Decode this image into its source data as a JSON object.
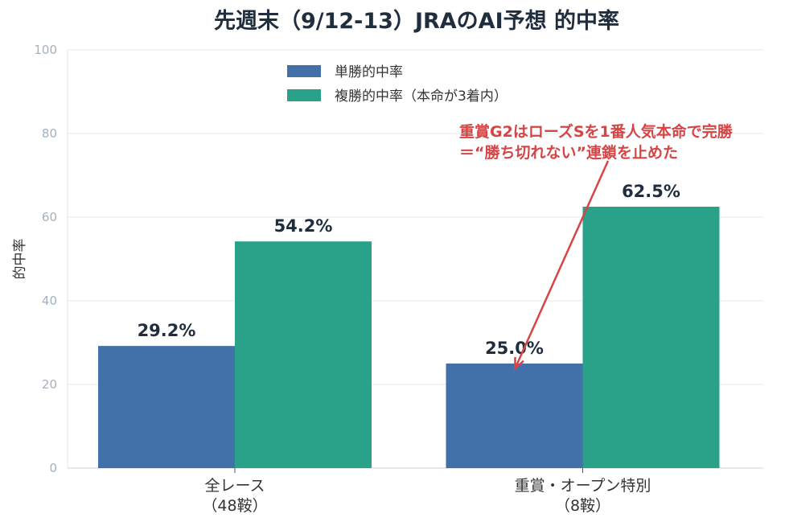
{
  "chart_data": {
    "type": "bar",
    "title": "先週末（9/12-13）JRAのAI予想 的中率",
    "xlabel": "",
    "ylabel": "的中率",
    "ylim": [
      0,
      100
    ],
    "yticks": [
      0,
      20,
      40,
      60,
      80,
      100
    ],
    "grid": true,
    "legend_position": "top-center",
    "categories": [
      [
        "全レース",
        "（48鞍）"
      ],
      [
        "重賞・オープン特別",
        "（8鞍）"
      ]
    ],
    "series": [
      {
        "name": "単勝的中率",
        "color": "#4270a8",
        "values": [
          29.2,
          25.0
        ],
        "labels": [
          "29.2%",
          "25.0%"
        ]
      },
      {
        "name": "複勝的中率（本命が3着内）",
        "color": "#2aa189",
        "values": [
          54.2,
          62.5
        ],
        "labels": [
          "54.2%",
          "62.5%"
        ]
      }
    ],
    "annotation": {
      "lines": [
        "重賞G2はローズSを1番人気本命で完勝",
        "＝“勝ち切れない”連鎖を止めた"
      ],
      "color": "#d64545",
      "points_to": {
        "category": 1,
        "series": 0,
        "value": 25.0
      }
    }
  }
}
